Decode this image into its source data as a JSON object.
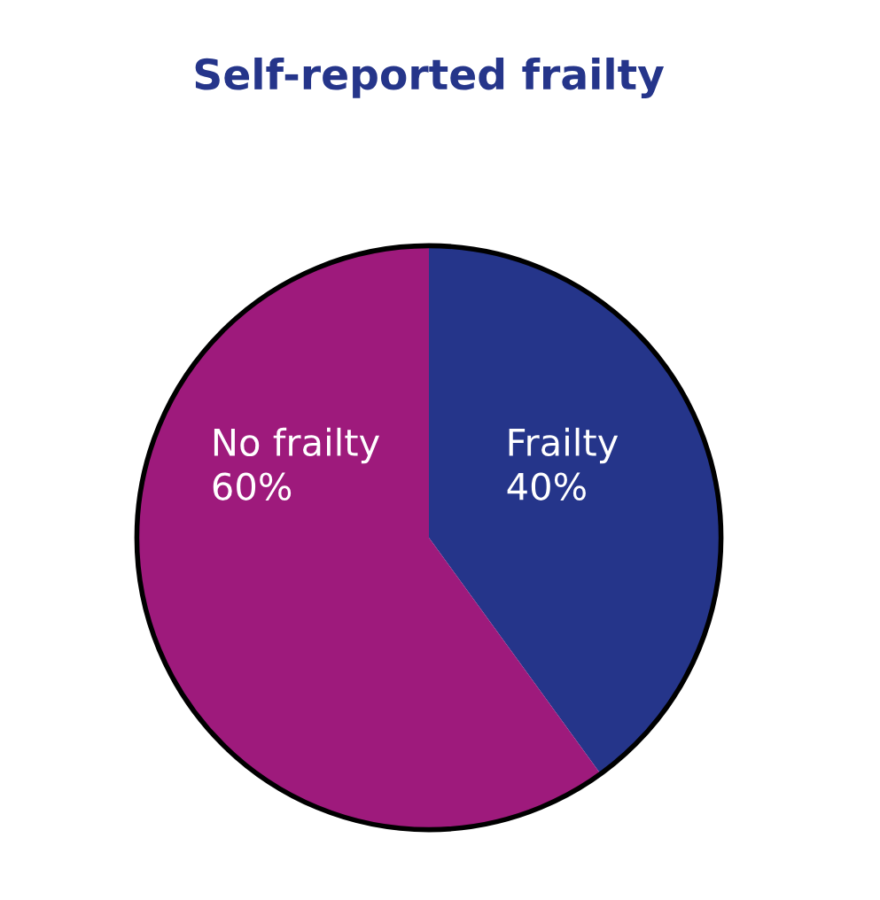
{
  "chart_data": {
    "type": "pie",
    "title": "Self-reported frailty",
    "categories": [
      "Frailty",
      "No frailty"
    ],
    "values": [
      40,
      60
    ],
    "value_labels": [
      "40%",
      "60%"
    ],
    "colors": [
      "#25358a",
      "#9e1a7c"
    ],
    "legend": false
  }
}
